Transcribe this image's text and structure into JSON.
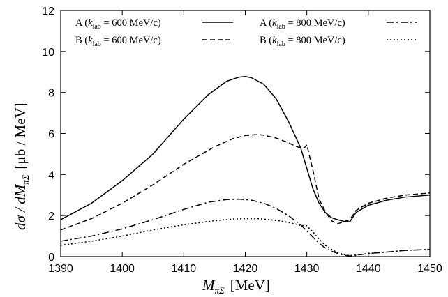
{
  "chart_data": {
    "type": "line",
    "xlabel_main": "M",
    "xlabel_sub": "πΣ",
    "xlabel_unit": "[MeV]",
    "ylabel_lead": "dσ / dM",
    "ylabel_sub": "πΣ",
    "ylabel_unit": "[μb / MeV]",
    "xlim": [
      1390,
      1450
    ],
    "ylim": [
      0,
      12
    ],
    "xticks": [
      "1390",
      "1400",
      "1410",
      "1420",
      "1430",
      "1440",
      "1450"
    ],
    "yticks": [
      "0",
      "2",
      "4",
      "6",
      "8",
      "10",
      "12"
    ],
    "grid": false,
    "legend_position": "top",
    "series": [
      {
        "name": "A (k_lab = 600 MeV/c)",
        "legend_prefix": "A (",
        "legend_k": "k",
        "legend_sub": "lab",
        "legend_suffix": " = 600 MeV/c)",
        "dash": "solid",
        "x": [
          1390,
          1395,
          1400,
          1405,
          1410,
          1414,
          1417,
          1419,
          1420,
          1421,
          1423,
          1425,
          1427,
          1429,
          1430,
          1431,
          1432,
          1433,
          1434,
          1435,
          1436,
          1437,
          1438,
          1440,
          1443,
          1446,
          1450
        ],
        "y": [
          1.8,
          2.6,
          3.7,
          5.0,
          6.7,
          7.9,
          8.55,
          8.75,
          8.78,
          8.72,
          8.4,
          7.7,
          6.6,
          5.3,
          4.3,
          3.3,
          2.6,
          2.15,
          1.9,
          1.8,
          1.72,
          1.7,
          2.15,
          2.5,
          2.75,
          2.9,
          3.0
        ]
      },
      {
        "name": "B (k_lab = 600 MeV/c)",
        "legend_prefix": "B (",
        "legend_k": "k",
        "legend_sub": "lab",
        "legend_suffix": " = 600 MeV/c)",
        "dash": "dashed",
        "x": [
          1390,
          1395,
          1400,
          1405,
          1410,
          1415,
          1418,
          1420,
          1422,
          1423,
          1425,
          1427,
          1428,
          1429,
          1429.6,
          1430,
          1431,
          1432,
          1433,
          1434,
          1435,
          1436,
          1437,
          1438,
          1440,
          1443,
          1446,
          1450
        ],
        "y": [
          1.3,
          1.85,
          2.6,
          3.5,
          4.5,
          5.35,
          5.75,
          5.9,
          5.95,
          5.92,
          5.78,
          5.55,
          5.4,
          5.3,
          5.3,
          5.45,
          4.2,
          2.8,
          2.2,
          1.75,
          1.6,
          1.7,
          1.8,
          2.25,
          2.6,
          2.85,
          3.0,
          3.1
        ]
      },
      {
        "name": "A (k_lab = 800 MeV/c)",
        "legend_prefix": "A (",
        "legend_k": "k",
        "legend_sub": "lab",
        "legend_suffix": " = 800 MeV/c)",
        "dash": "dashdot",
        "x": [
          1390,
          1395,
          1400,
          1405,
          1410,
          1414,
          1417,
          1419,
          1421,
          1423,
          1425,
          1427,
          1429,
          1430,
          1431,
          1432,
          1433,
          1434,
          1435,
          1436,
          1437,
          1438,
          1440,
          1443,
          1446,
          1450
        ],
        "y": [
          0.75,
          1.0,
          1.35,
          1.8,
          2.3,
          2.65,
          2.78,
          2.8,
          2.75,
          2.6,
          2.35,
          2.0,
          1.55,
          1.25,
          0.95,
          0.65,
          0.42,
          0.27,
          0.15,
          0.07,
          0.03,
          0.06,
          0.15,
          0.22,
          0.3,
          0.35
        ]
      },
      {
        "name": "B (k_lab = 800 MeV/c)",
        "legend_prefix": "B (",
        "legend_k": "k",
        "legend_sub": "lab",
        "legend_suffix": " = 800 MeV/c)",
        "dash": "dotted",
        "x": [
          1390,
          1395,
          1400,
          1405,
          1410,
          1415,
          1418,
          1420,
          1422,
          1424,
          1426,
          1428,
          1429,
          1430,
          1431,
          1432,
          1433,
          1434,
          1435,
          1436,
          1437,
          1438,
          1440,
          1443,
          1446,
          1450
        ],
        "y": [
          0.55,
          0.75,
          1.0,
          1.3,
          1.55,
          1.75,
          1.83,
          1.85,
          1.85,
          1.8,
          1.72,
          1.6,
          1.52,
          1.5,
          1.2,
          0.85,
          0.55,
          0.35,
          0.2,
          0.1,
          0.05,
          0.08,
          0.15,
          0.22,
          0.3,
          0.35
        ]
      }
    ]
  }
}
